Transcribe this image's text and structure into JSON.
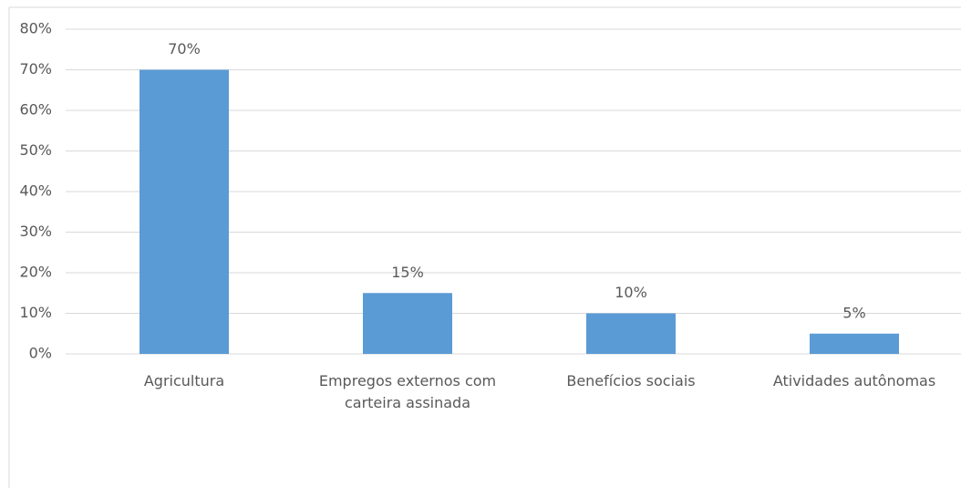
{
  "chart_data": {
    "type": "bar",
    "categories": [
      "Agricultura",
      "Empregos externos com carteira assinada",
      "Benefícios sociais",
      "Atividades autônomas"
    ],
    "values": [
      70,
      15,
      10,
      5
    ],
    "value_labels": [
      "70%",
      "15%",
      "10%",
      "5%"
    ],
    "color": "#5b9bd5",
    "ylim": [
      0,
      80
    ],
    "yticks": [
      {
        "value": 0,
        "label": "0%"
      },
      {
        "value": 10,
        "label": "10%"
      },
      {
        "value": 20,
        "label": "20%"
      },
      {
        "value": 30,
        "label": "30%"
      },
      {
        "value": 40,
        "label": "40%"
      },
      {
        "value": 50,
        "label": "50%"
      },
      {
        "value": 60,
        "label": "60%"
      },
      {
        "value": 70,
        "label": "70%"
      },
      {
        "value": 80,
        "label": "80%"
      }
    ],
    "grid": true
  }
}
